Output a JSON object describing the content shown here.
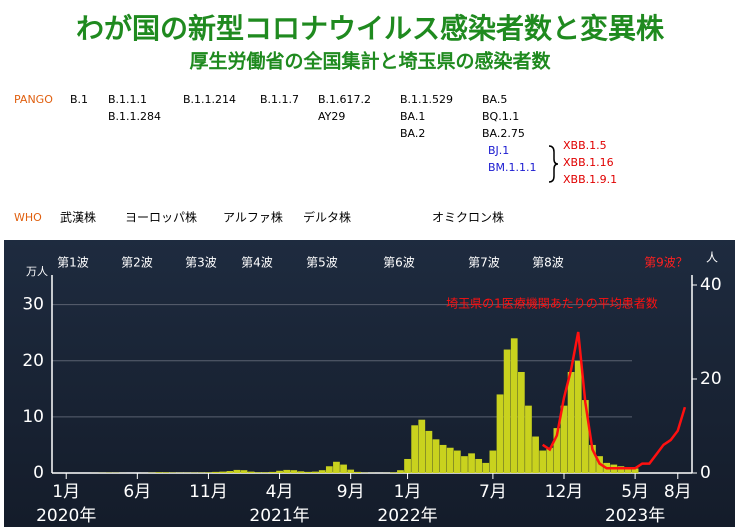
{
  "header": {
    "title": "わが国の新型コロナウイルス感染者数と変異株",
    "subtitle": "厚生労働省の全国集計と埼玉県の感染者数"
  },
  "pango": {
    "label": "PANGO",
    "groups": [
      {
        "lines": [
          "B.1"
        ]
      },
      {
        "lines": [
          "B.1.1.1",
          "B.1.1.284"
        ]
      },
      {
        "lines": [
          "B.1.1.214"
        ]
      },
      {
        "lines": [
          "B.1.1.7"
        ]
      },
      {
        "lines": [
          "B.1.617.2",
          "AY29"
        ]
      },
      {
        "lines": [
          "B.1.1.529",
          "BA.1",
          "BA.2"
        ]
      },
      {
        "lines": [
          "BA.5",
          "BQ.1.1",
          "BA.2.75"
        ]
      },
      {
        "lines": [
          "BJ.1",
          "BM.1.1.1"
        ],
        "color": "#1a1ad0"
      },
      {
        "lines": [
          "XBB.1.5",
          "XBB.1.16",
          "XBB.1.9.1"
        ],
        "color": "#e00000"
      }
    ]
  },
  "who": {
    "label": "WHO",
    "names": [
      "武漢株",
      "ヨーロッパ株",
      "アルファ株",
      "デルタ株",
      "オミクロン株"
    ]
  },
  "chart_data": {
    "type": "bar",
    "y_unit": "万人",
    "y2_unit": "人",
    "wave_labels": [
      "第1波",
      "第2波",
      "第3波",
      "第4波",
      "第5波",
      "第6波",
      "第7波",
      "第8波"
    ],
    "next_wave_label": "第9波？",
    "xlim": [
      -1,
      44
    ],
    "xticks": [
      {
        "value": 0,
        "label": "1月"
      },
      {
        "value": 5,
        "label": "6月"
      },
      {
        "value": 10,
        "label": "11月"
      },
      {
        "value": 15,
        "label": "4月"
      },
      {
        "value": 20,
        "label": "9月"
      },
      {
        "value": 24,
        "label": "1月"
      },
      {
        "value": 30,
        "label": "7月"
      },
      {
        "value": 35,
        "label": "12月"
      },
      {
        "value": 40,
        "label": "5月"
      },
      {
        "value": 43,
        "label": "8月"
      }
    ],
    "year_labels": [
      {
        "value": 0,
        "label": "2020年"
      },
      {
        "value": 15,
        "label": "2021年"
      },
      {
        "value": 24,
        "label": "2022年"
      },
      {
        "value": 40,
        "label": "2023年"
      }
    ],
    "ylim": [
      0,
      33.5
    ],
    "yticks": [
      0,
      10,
      20,
      30
    ],
    "y2lim": [
      0,
      40
    ],
    "y2ticks": [
      0,
      20,
      40
    ],
    "grid": true,
    "series": [
      {
        "type": "bar",
        "color": "#c9d21e",
        "x": [
          0,
          0.5,
          1,
          1.5,
          2,
          2.5,
          3,
          3.5,
          4,
          4.5,
          5,
          5.5,
          6,
          6.5,
          7,
          7.5,
          8,
          8.5,
          9,
          9.5,
          10,
          10.5,
          11,
          11.5,
          12,
          12.5,
          13,
          13.5,
          14,
          14.5,
          15,
          15.5,
          16,
          16.5,
          17,
          17.5,
          18,
          18.5,
          19,
          19.5,
          20,
          20.5,
          21,
          21.5,
          22,
          22.5,
          23,
          23.5,
          24,
          24.5,
          25,
          25.5,
          26,
          26.5,
          27,
          27.5,
          28,
          28.5,
          29,
          29.5,
          30,
          30.5,
          31,
          31.5,
          32,
          32.5,
          33,
          33.5,
          34,
          34.5,
          35,
          35.5,
          36,
          36.5,
          37,
          37.5,
          38,
          38.5,
          39,
          39.5,
          40
        ],
        "values": [
          0,
          0,
          0,
          0,
          0.01,
          0.03,
          0.05,
          0.04,
          0.01,
          0,
          0,
          0.01,
          0.05,
          0.13,
          0.12,
          0.07,
          0.05,
          0.05,
          0.06,
          0.07,
          0.1,
          0.2,
          0.25,
          0.35,
          0.55,
          0.5,
          0.25,
          0.12,
          0.12,
          0.2,
          0.4,
          0.55,
          0.5,
          0.3,
          0.2,
          0.25,
          0.5,
          1.2,
          2.0,
          1.5,
          0.6,
          0.2,
          0.05,
          0.02,
          0.01,
          0.02,
          0.1,
          0.5,
          2.5,
          8.5,
          9.5,
          7.5,
          6.0,
          5.0,
          4.5,
          4.0,
          3.0,
          3.5,
          2.5,
          1.8,
          4.0,
          14,
          22,
          24,
          18,
          12,
          6.5,
          4.0,
          4.5,
          8.0,
          12,
          18,
          20,
          13,
          5.0,
          3.0,
          1.8,
          1.5,
          1.2,
          1.0,
          0.8
        ]
      },
      {
        "type": "line",
        "name": "埼玉県の1医療機関あたりの平均患者数",
        "color": "#ff1010",
        "axis": "y2",
        "x": [
          33.5,
          34,
          34.5,
          35,
          35.5,
          36,
          36.5,
          37,
          37.5,
          38,
          38.5,
          39,
          39.5,
          40,
          40.5,
          41,
          41.5,
          42,
          42.5,
          43,
          43.5
        ],
        "values": [
          6,
          5,
          8,
          16,
          22,
          30,
          15,
          5,
          2,
          1,
          1,
          1,
          1,
          1,
          2,
          2,
          4,
          6,
          7,
          9,
          14
        ]
      }
    ]
  }
}
